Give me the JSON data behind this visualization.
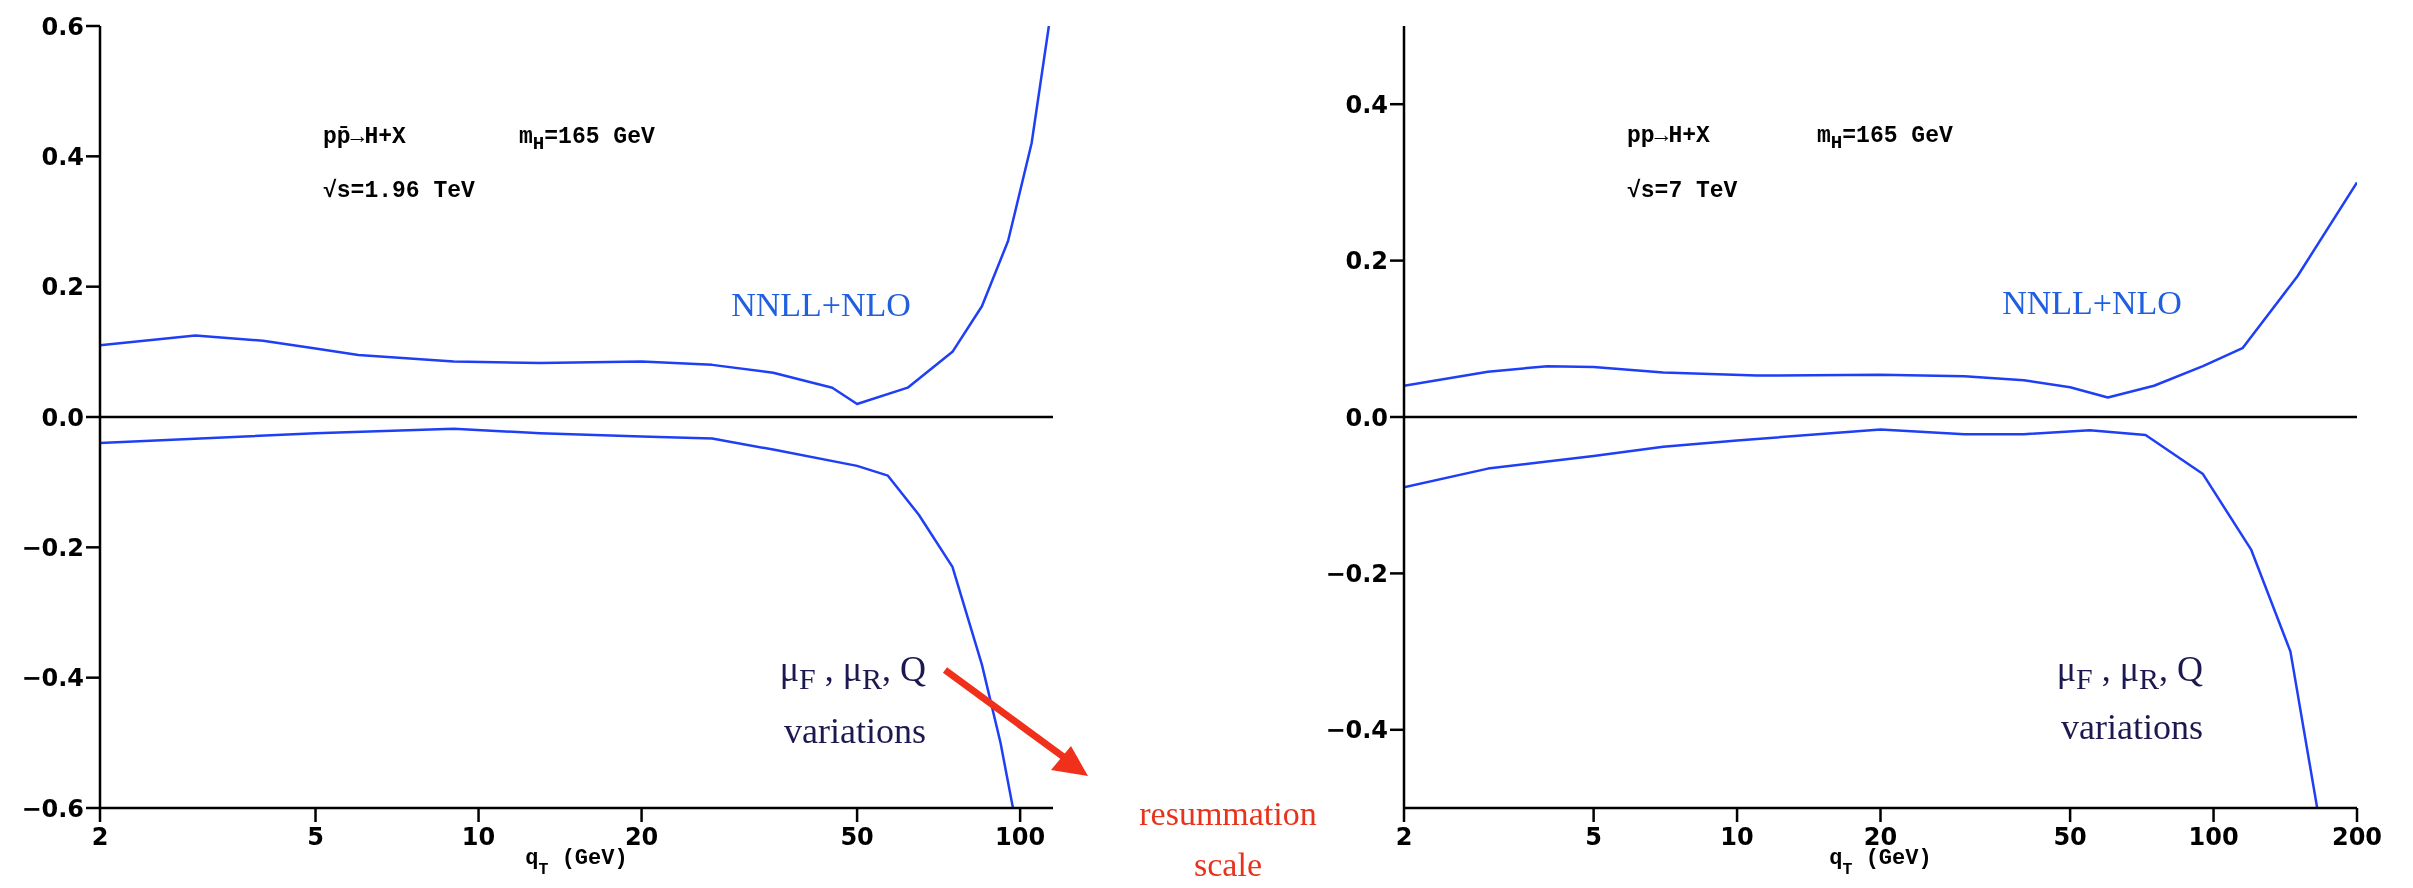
{
  "chart_data": [
    {
      "type": "line",
      "xlabel": "q$_{T}$ (GeV)",
      "log": "x",
      "xlim": [
        2,
        115
      ],
      "xticks": [
        2,
        5,
        10,
        20,
        50,
        100
      ],
      "ylim": [
        -0.6,
        0.6
      ],
      "yticks": [
        {
          "value": -0.6,
          "label": "−0.6"
        },
        {
          "value": -0.4,
          "label": "−0.4"
        },
        {
          "value": -0.2,
          "label": "−0.2"
        },
        {
          "value": 0,
          "label": "0.0"
        },
        {
          "value": 0.2,
          "label": "0.2"
        },
        {
          "value": 0.4,
          "label": "0.4"
        },
        {
          "value": 0.6,
          "label": "0.6"
        }
      ],
      "grid": false,
      "legend": false,
      "marker": "none",
      "line_style": "solid",
      "ref_lines": [
        {
          "axis": "y",
          "value": 0,
          "color": "#000000"
        }
      ],
      "series": [
        {
          "color": "#1f3ff5",
          "x": [
            2,
            3,
            4,
            5,
            6,
            9,
            13,
            20,
            27,
            35,
            45,
            50,
            62,
            75,
            85,
            95,
            105,
            113
          ],
          "values": [
            0.11,
            0.125,
            0.117,
            0.105,
            0.095,
            0.085,
            0.083,
            0.085,
            0.08,
            0.068,
            0.045,
            0.02,
            0.045,
            0.1,
            0.17,
            0.27,
            0.42,
            0.6
          ]
        },
        {
          "color": "#1f3ff5",
          "x": [
            2,
            5,
            9,
            13,
            20,
            27,
            35,
            50,
            57,
            65,
            75,
            85,
            92,
            97
          ],
          "values": [
            -0.04,
            -0.025,
            -0.018,
            -0.025,
            -0.03,
            -0.033,
            -0.05,
            -0.075,
            -0.09,
            -0.15,
            -0.23,
            -0.38,
            -0.5,
            -0.6
          ]
        }
      ],
      "annotations": [
        "pp̄→H+X",
        "m$_{H}$=165 GeV",
        "√s=1.96 TeV",
        "NNLL+NLO",
        "μ$_{F}$ , μ$_{R}$, Q",
        "variations",
        "resummation scale"
      ]
    },
    {
      "type": "line",
      "xlabel": "q$_{T}$ (GeV)",
      "log": "x",
      "xlim": [
        2,
        200
      ],
      "xticks": [
        2,
        5,
        10,
        20,
        50,
        100,
        200
      ],
      "ylim": [
        -0.5,
        0.5
      ],
      "yticks": [
        {
          "value": -0.4,
          "label": "−0.4"
        },
        {
          "value": -0.2,
          "label": "−0.2"
        },
        {
          "value": 0,
          "label": "0.0"
        },
        {
          "value": 0.2,
          "label": "0.2"
        },
        {
          "value": 0.4,
          "label": "0.4"
        }
      ],
      "grid": false,
      "legend": false,
      "marker": "none",
      "line_style": "solid",
      "ref_lines": [
        {
          "axis": "y",
          "value": 0,
          "color": "#000000"
        }
      ],
      "series": [
        {
          "color": "#1f3ff5",
          "x": [
            2,
            3,
            4,
            5,
            7,
            11,
            20,
            30,
            40,
            50,
            60,
            75,
            95,
            115,
            150,
            200
          ],
          "values": [
            0.04,
            0.058,
            0.065,
            0.064,
            0.057,
            0.053,
            0.054,
            0.052,
            0.047,
            0.038,
            0.025,
            0.04,
            0.065,
            0.088,
            0.18,
            0.3
          ]
        },
        {
          "color": "#1f3ff5",
          "x": [
            2,
            3,
            5,
            7,
            10,
            20,
            30,
            40,
            55,
            72,
            95,
            120,
            145,
            165
          ],
          "values": [
            -0.09,
            -0.066,
            -0.05,
            -0.038,
            -0.03,
            -0.016,
            -0.022,
            -0.022,
            -0.017,
            -0.023,
            -0.073,
            -0.17,
            -0.3,
            -0.5
          ]
        }
      ],
      "annotations": [
        "pp→H+X",
        "m$_{H}$=165 GeV",
        "√s=7 TeV",
        "NNLL+NLO",
        "μ$_{F}$ , μ$_{R}$, Q",
        "variations"
      ]
    }
  ]
}
